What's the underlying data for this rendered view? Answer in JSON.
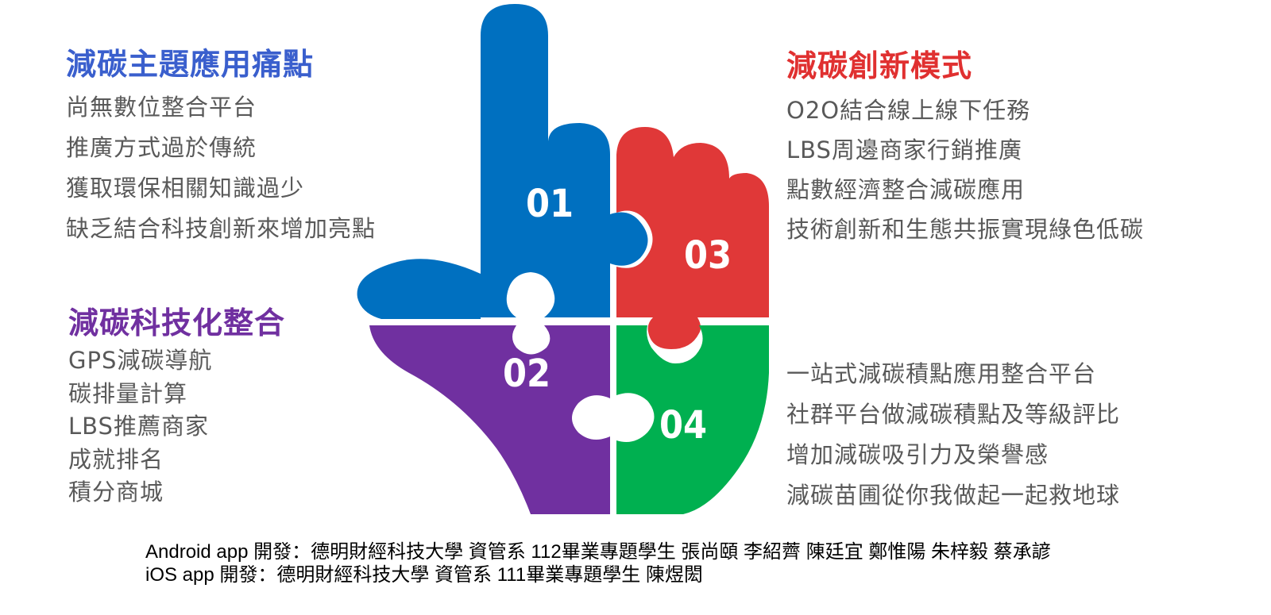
{
  "sections": {
    "top_left": {
      "heading": "減碳主題應用痛點",
      "items": [
        "尚無數位整合平台",
        "推廣方式過於傳統",
        "獲取環保相關知識過少",
        "缺乏結合科技創新來增加亮點"
      ]
    },
    "bottom_left": {
      "heading": "減碳科技化整合",
      "items": [
        "GPS減碳導航",
        "碳排量計算",
        "LBS推薦商家",
        "成就排名",
        "積分商城"
      ]
    },
    "top_right": {
      "heading": "減碳創新模式",
      "items": [
        "O2O結合線上線下任務",
        "LBS周邊商家行銷推廣",
        "點數經濟整合減碳應用",
        "技術創新和生態共振實現綠色低碳"
      ]
    },
    "bottom_right": {
      "items": [
        "一站式減碳積點應用整合平台",
        "社群平台做減碳積點及等級評比",
        "增加減碳吸引力及榮譽感",
        "減碳苗圃從你我做起一起救地球"
      ]
    }
  },
  "hand": {
    "pieces": [
      {
        "label": "01",
        "color": "#0070c0"
      },
      {
        "label": "02",
        "color": "#7030a0"
      },
      {
        "label": "03",
        "color": "#e03838"
      },
      {
        "label": "04",
        "color": "#00b050"
      }
    ]
  },
  "credits": [
    "Android app 開發：德明財經科技大學 資管系 112畢業專題學生  張尚頤 李紹薺 陳廷宜 鄭惟陽 朱梓毅  蔡承諺",
    "iOS app 開發：德明財經科技大學 資管系 111畢業專題學生 陳煜閎"
  ]
}
